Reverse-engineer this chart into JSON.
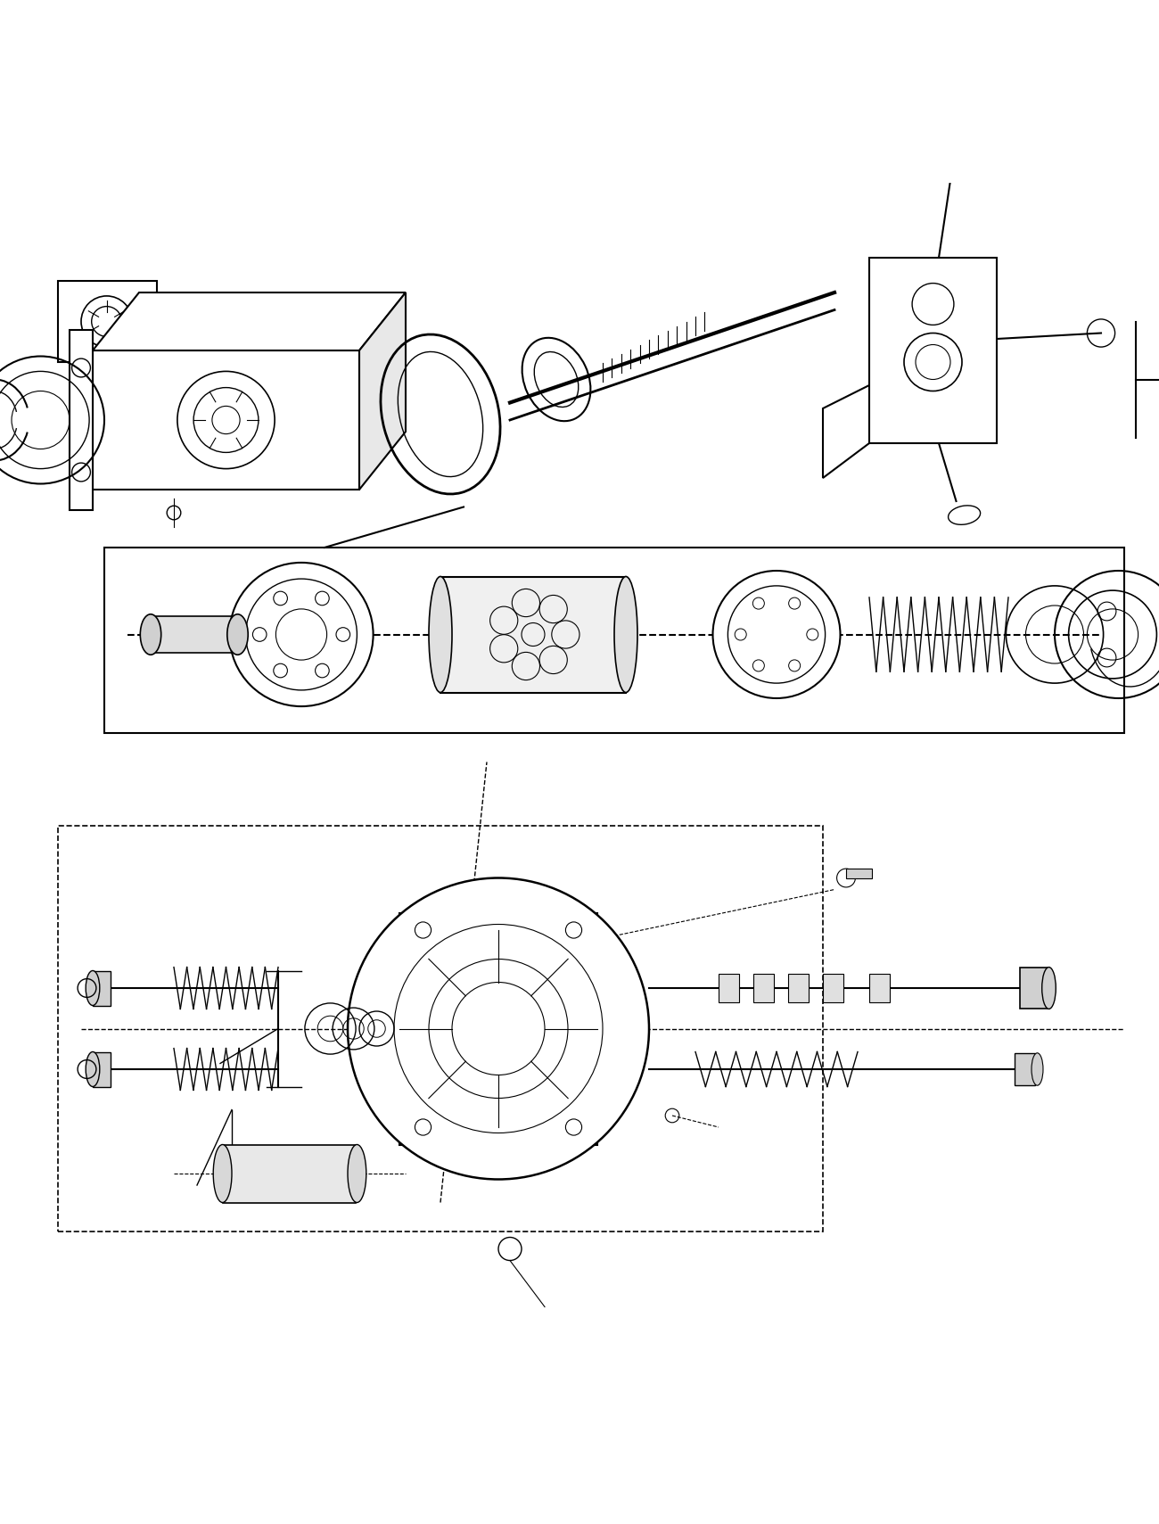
{
  "title": "",
  "background_color": "#ffffff",
  "line_color": "#000000",
  "line_width": 1.5,
  "fig_width": 13.0,
  "fig_height": 17.09,
  "dpi": 100
}
